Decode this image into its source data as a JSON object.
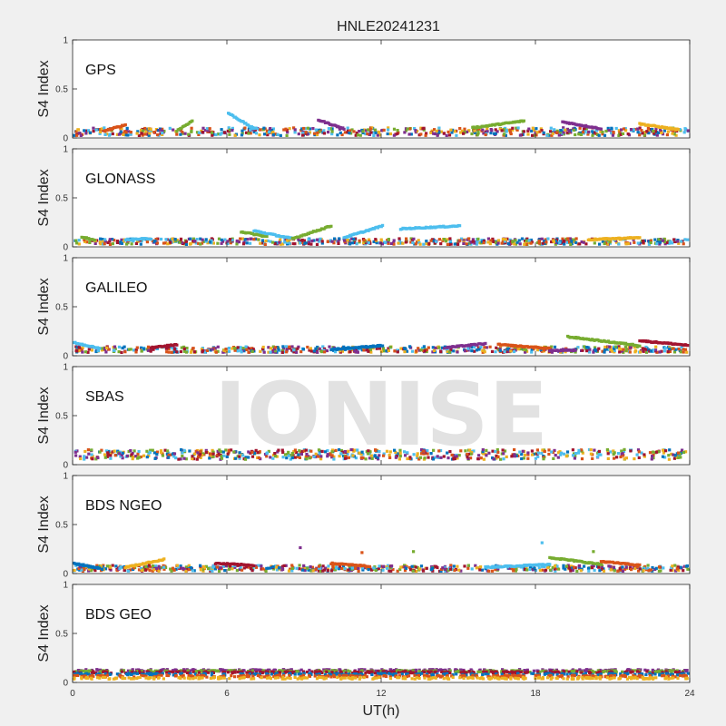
{
  "chart_data": {
    "type": "scatter",
    "title": "HNLE20241231",
    "xlabel": "UT(h)",
    "ylabel": "S4 Index",
    "xlim": [
      0,
      24
    ],
    "ylim": [
      0,
      1
    ],
    "x_ticks": [
      "0",
      "6",
      "12",
      "18",
      "24"
    ],
    "y_ticks": [
      "0",
      "0.5",
      "1"
    ],
    "watermark": "IONISE",
    "grid": false,
    "series_colors": [
      "#0072bd",
      "#d95319",
      "#edb120",
      "#7e2f8e",
      "#77ac30",
      "#4dbeee",
      "#a2142f"
    ],
    "panels": [
      {
        "label": "GPS",
        "base": 0.06,
        "jitter": 0.04,
        "arcs": [
          {
            "x0": 1.2,
            "x1": 2.0,
            "y0": 0.07,
            "y1": 0.13,
            "color": "#d95319"
          },
          {
            "x0": 4.0,
            "x1": 4.6,
            "y0": 0.07,
            "y1": 0.17,
            "color": "#77ac30"
          },
          {
            "x0": 6.0,
            "x1": 7.0,
            "y0": 0.25,
            "y1": 0.09,
            "color": "#4dbeee"
          },
          {
            "x0": 9.5,
            "x1": 10.5,
            "y0": 0.18,
            "y1": 0.09,
            "color": "#7e2f8e"
          },
          {
            "x0": 15.5,
            "x1": 17.5,
            "y0": 0.1,
            "y1": 0.17,
            "color": "#77ac30"
          },
          {
            "x0": 19.0,
            "x1": 20.5,
            "y0": 0.16,
            "y1": 0.09,
            "color": "#7e2f8e"
          },
          {
            "x0": 22.0,
            "x1": 23.5,
            "y0": 0.14,
            "y1": 0.08,
            "color": "#edb120"
          }
        ]
      },
      {
        "label": "GLONASS",
        "base": 0.05,
        "jitter": 0.03,
        "arcs": [
          {
            "x0": 0.3,
            "x1": 0.8,
            "y0": 0.1,
            "y1": 0.06,
            "color": "#77ac30"
          },
          {
            "x0": 2.0,
            "x1": 3.0,
            "y0": 0.07,
            "y1": 0.08,
            "color": "#4dbeee"
          },
          {
            "x0": 6.5,
            "x1": 7.5,
            "y0": 0.15,
            "y1": 0.1,
            "color": "#77ac30"
          },
          {
            "x0": 7.0,
            "x1": 8.5,
            "y0": 0.16,
            "y1": 0.08,
            "color": "#4dbeee"
          },
          {
            "x0": 8.5,
            "x1": 10.0,
            "y0": 0.08,
            "y1": 0.21,
            "color": "#77ac30"
          },
          {
            "x0": 10.5,
            "x1": 12.0,
            "y0": 0.09,
            "y1": 0.21,
            "color": "#4dbeee"
          },
          {
            "x0": 12.7,
            "x1": 15.0,
            "y0": 0.18,
            "y1": 0.21,
            "color": "#4dbeee"
          },
          {
            "x0": 20.0,
            "x1": 22.0,
            "y0": 0.07,
            "y1": 0.09,
            "color": "#edb120"
          }
        ]
      },
      {
        "label": "GALILEO",
        "base": 0.06,
        "jitter": 0.03,
        "arcs": [
          {
            "x0": 0.0,
            "x1": 1.0,
            "y0": 0.13,
            "y1": 0.07,
            "color": "#4dbeee"
          },
          {
            "x0": 3.0,
            "x1": 4.0,
            "y0": 0.08,
            "y1": 0.11,
            "color": "#a2142f"
          },
          {
            "x0": 10.0,
            "x1": 12.0,
            "y0": 0.06,
            "y1": 0.1,
            "color": "#0072bd"
          },
          {
            "x0": 14.5,
            "x1": 16.0,
            "y0": 0.08,
            "y1": 0.12,
            "color": "#7e2f8e"
          },
          {
            "x0": 16.5,
            "x1": 18.5,
            "y0": 0.11,
            "y1": 0.07,
            "color": "#d95319"
          },
          {
            "x0": 18.5,
            "x1": 19.5,
            "y0": 0.05,
            "y1": 0.05,
            "color": "#7e2f8e"
          },
          {
            "x0": 19.2,
            "x1": 22.0,
            "y0": 0.19,
            "y1": 0.1,
            "color": "#77ac30"
          },
          {
            "x0": 22.0,
            "x1": 24.0,
            "y0": 0.15,
            "y1": 0.1,
            "color": "#a2142f"
          }
        ]
      },
      {
        "label": "SBAS",
        "base": 0.1,
        "jitter": 0.05,
        "arcs": []
      },
      {
        "label": "BDS NGEO",
        "base": 0.05,
        "jitter": 0.03,
        "arcs": [
          {
            "x0": 0.0,
            "x1": 1.0,
            "y0": 0.1,
            "y1": 0.05,
            "color": "#0072bd"
          },
          {
            "x0": 2.0,
            "x1": 3.5,
            "y0": 0.06,
            "y1": 0.14,
            "color": "#edb120"
          },
          {
            "x0": 5.5,
            "x1": 7.0,
            "y0": 0.1,
            "y1": 0.08,
            "color": "#a2142f"
          },
          {
            "x0": 10.0,
            "x1": 11.5,
            "y0": 0.1,
            "y1": 0.07,
            "color": "#d95319"
          },
          {
            "x0": 16.0,
            "x1": 18.5,
            "y0": 0.06,
            "y1": 0.09,
            "color": "#4dbeee"
          },
          {
            "x0": 18.5,
            "x1": 20.5,
            "y0": 0.16,
            "y1": 0.09,
            "color": "#77ac30"
          },
          {
            "x0": 20.5,
            "x1": 22.0,
            "y0": 0.12,
            "y1": 0.08,
            "color": "#d95319"
          }
        ],
        "outliers": [
          {
            "x": 8.8,
            "y": 0.26,
            "color": "#7e2f8e"
          },
          {
            "x": 11.2,
            "y": 0.21,
            "color": "#d95319"
          },
          {
            "x": 13.2,
            "y": 0.22,
            "color": "#77ac30"
          },
          {
            "x": 18.2,
            "y": 0.31,
            "color": "#4dbeee"
          },
          {
            "x": 20.2,
            "y": 0.22,
            "color": "#77ac30"
          }
        ]
      },
      {
        "label": "BDS GEO",
        "base": 0.0,
        "jitter": 0.0,
        "arcs": [],
        "bands": [
          {
            "y": 0.12,
            "color": "#7e2f8e"
          },
          {
            "y": 0.11,
            "color": "#77ac30"
          },
          {
            "y": 0.1,
            "color": "#a2142f"
          },
          {
            "y": 0.08,
            "color": "#0072bd"
          },
          {
            "y": 0.06,
            "color": "#d95319"
          },
          {
            "y": 0.04,
            "color": "#edb120"
          }
        ]
      }
    ]
  }
}
